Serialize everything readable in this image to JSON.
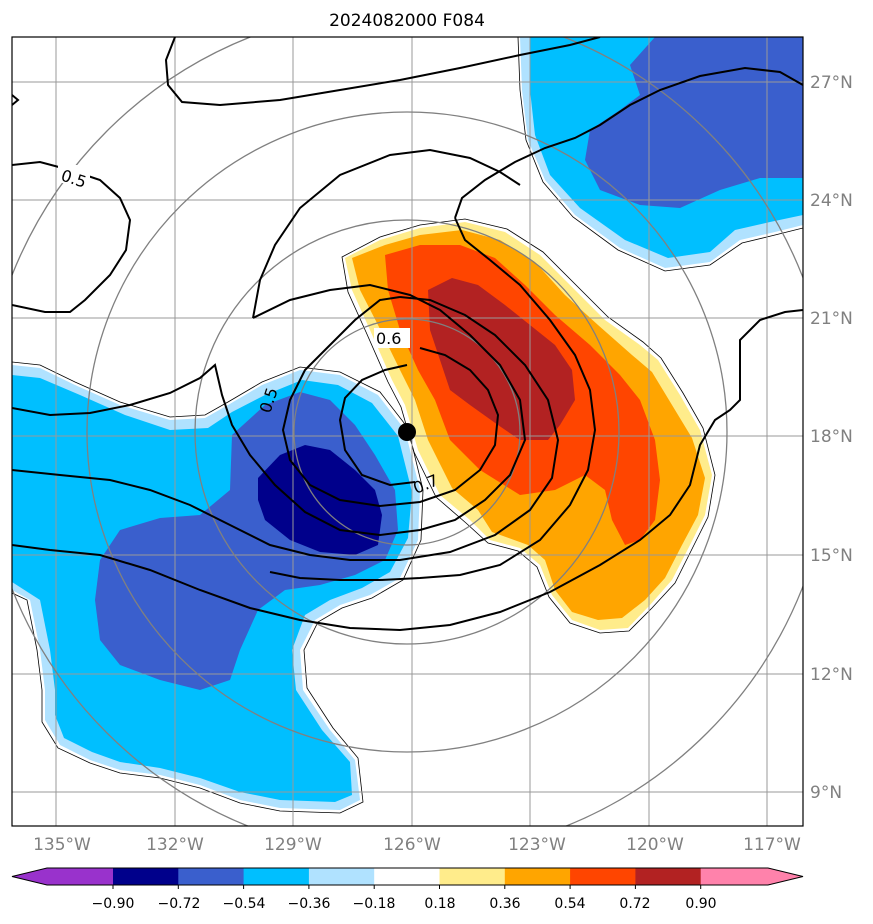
{
  "title": "2024082000 F084",
  "axes": {
    "lat_labels": [
      "27°N",
      "24°N",
      "21°N",
      "18°N",
      "15°N",
      "12°N",
      "9°N"
    ],
    "lon_labels": [
      "135°W",
      "132°W",
      "129°W",
      "126°W",
      "123°W",
      "120°W",
      "117°W"
    ],
    "lat_values": [
      27,
      24,
      21,
      18,
      15,
      12,
      9
    ],
    "lon_values": [
      -135,
      -132,
      -129,
      -126,
      -123,
      -120,
      -117
    ],
    "tick_color": "#808080"
  },
  "contour_labels": {
    "c05a": "0.5",
    "c05b": "0.5",
    "c06": "0.6",
    "c07": "0.7"
  },
  "storm_center": {
    "lat": 18.2,
    "lon": -126.1
  },
  "colorbar": {
    "tick_labels": [
      "−0.90",
      "−0.72",
      "−0.54",
      "−0.36",
      "−0.18",
      "0.18",
      "0.36",
      "0.54",
      "0.72",
      "0.90"
    ],
    "levels": [
      -0.9,
      -0.72,
      -0.54,
      -0.36,
      -0.18,
      0.18,
      0.36,
      0.54,
      0.72,
      0.9
    ],
    "colors": [
      "#9932cc",
      "#00008b",
      "#3a5fcd",
      "#00bfff",
      "#b0e2ff",
      "#ffffff",
      "#ffec8b",
      "#ffa500",
      "#ff4500",
      "#b22222",
      "#ff82ab"
    ]
  },
  "colors": {
    "deep_blue": "#00008b",
    "mid_blue": "#3a5fcd",
    "light_blue": "#00bfff",
    "pale_blue": "#b0e2ff",
    "pale_yellow": "#ffec8b",
    "orange": "#ffa500",
    "red_orange": "#ff4500",
    "dark_red": "#b22222"
  }
}
